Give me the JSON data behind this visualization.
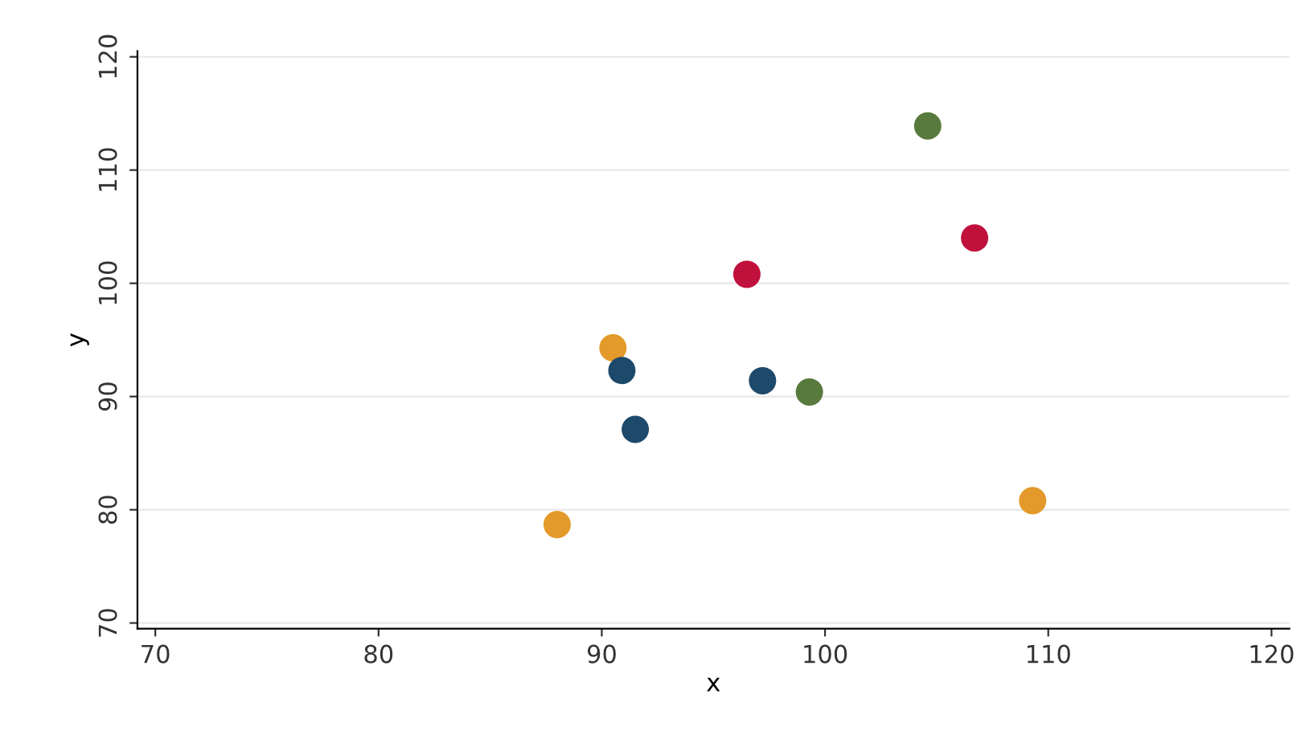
{
  "chart_data": {
    "type": "scatter",
    "xlabel": "x",
    "ylabel": "y",
    "x": [
      104.6,
      106.7,
      96.5,
      90.5,
      90.9,
      97.2,
      99.3,
      91.5,
      109.3,
      88.0
    ],
    "values": [
      113.9,
      104.0,
      100.8,
      94.3,
      92.3,
      91.4,
      90.4,
      87.1,
      80.8,
      78.7
    ],
    "colors": [
      "#587a3c",
      "#c0103c",
      "#c0103c",
      "#e39a2a",
      "#1d4a6b",
      "#1d4a6b",
      "#587a3c",
      "#1d4a6b",
      "#e39a2a",
      "#e39a2a"
    ],
    "xlim": [
      69.2,
      120.8
    ],
    "ylim": [
      69.5,
      120.5
    ],
    "xticks": [
      70,
      80,
      90,
      100,
      110,
      120
    ],
    "yticks": [
      70,
      80,
      90,
      100,
      110,
      120
    ],
    "grid": "y",
    "marker": "circle"
  }
}
